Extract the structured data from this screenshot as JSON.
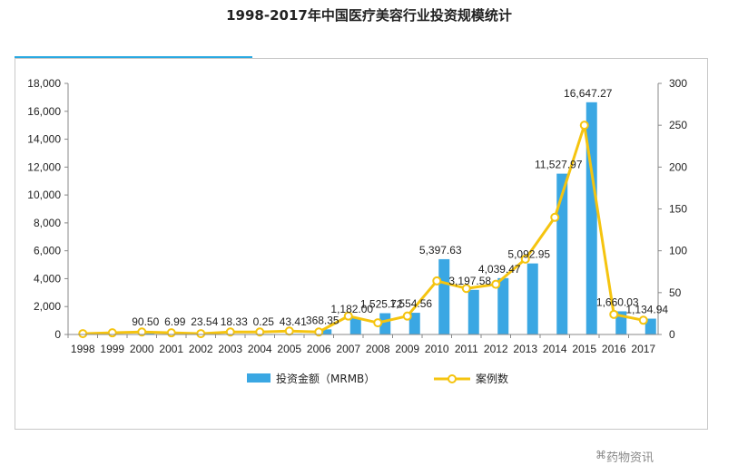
{
  "page_title": "1998-2017年中国医疗美容行业投资规模统计",
  "watermark": "药物资讯",
  "colors": {
    "bar": "#3aa7e3",
    "line": "#f5c40f",
    "marker_fill": "#ffffff",
    "axis": "#888888",
    "title_accent": "#29a9e1"
  },
  "chart_data": {
    "type": "bar",
    "title": "",
    "categories": [
      "1998",
      "1999",
      "2000",
      "2001",
      "2002",
      "2003",
      "2004",
      "2005",
      "2006",
      "2007",
      "2008",
      "2009",
      "2010",
      "2011",
      "2012",
      "2013",
      "2014",
      "2015",
      "2016",
      "2017"
    ],
    "series": [
      {
        "name": "投资金额（MRMB）",
        "type": "bar",
        "axis": "left",
        "values": [
          0,
          0,
          90.5,
          6.99,
          23.54,
          18.33,
          0.25,
          43.41,
          368.35,
          1182.0,
          1525.72,
          1554.56,
          5397.63,
          3197.58,
          4039.47,
          5092.95,
          11527.97,
          16647.27,
          1660.03,
          1134.94
        ],
        "labels": [
          "",
          "",
          "90.50",
          "6.99",
          "23.54",
          "18.33",
          "0.25",
          "43.41",
          "368.35",
          "1,182.00",
          "1,525.72",
          "1,554.56",
          "5,397.63",
          "3,197.58",
          "4,039.47",
          "5,092.95",
          "11,527.97",
          "16,647.27",
          "1,660.03",
          "1,134.94"
        ]
      },
      {
        "name": "案例数",
        "type": "line",
        "axis": "right",
        "values": [
          1,
          2,
          3,
          2,
          1,
          3,
          3,
          4,
          3,
          22,
          14,
          22,
          64,
          55,
          60,
          90,
          140,
          250,
          24,
          17
        ]
      }
    ],
    "y_left": {
      "range": [
        0,
        18000
      ],
      "ticks": [
        "0",
        "2,000",
        "4,000",
        "6,000",
        "8,000",
        "10,000",
        "12,000",
        "14,000",
        "16,000",
        "18,000"
      ]
    },
    "y_right": {
      "range": [
        0,
        300
      ],
      "ticks": [
        "0",
        "50",
        "100",
        "150",
        "200",
        "250",
        "300"
      ]
    },
    "grid": false,
    "legend_position": "bottom"
  }
}
